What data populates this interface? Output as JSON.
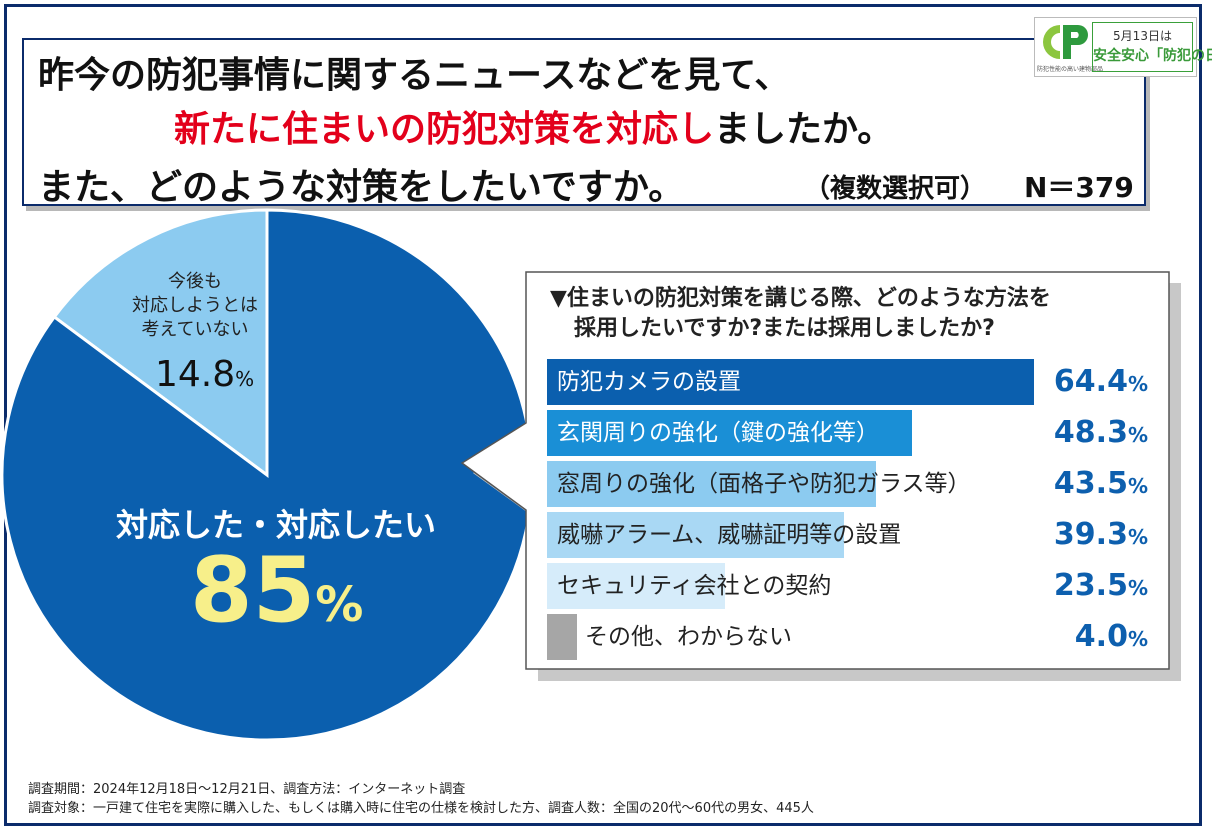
{
  "title": {
    "line1": "昨今の防犯事情に関するニュースなどを見て、",
    "line2_red": "新たに住まいの防犯対策を対応し",
    "line2_black": "ましたか。",
    "line3": "また、どのような対策をしたいですか。",
    "multi_select": "（複数選択可）",
    "sample": "N＝379"
  },
  "logo": {
    "line1": "5月13日は",
    "line2": "安全安心「防犯の日」",
    "sub": "防犯性能の高い建物部品"
  },
  "colors": {
    "pie_main": "#0b5fae",
    "pie_minor": "#8ccbf0",
    "frame": "#0b2b6b",
    "highlight_red": "#e3001b",
    "value_blue": "#0d5fae",
    "pct_yellow": "#f7ef8a"
  },
  "chart_data": [
    {
      "type": "pie",
      "slices": [
        {
          "label": "対応した・対応したい",
          "value": 85,
          "unit": "%",
          "color": "#0b5fae"
        },
        {
          "label": "今後も対応しようとは考えていない",
          "value": 14.8,
          "unit": "%",
          "color": "#8ccbf0"
        }
      ],
      "labels": {
        "minor_lines": [
          "今後も",
          "対応しようとは",
          "考えていない"
        ],
        "minor_value": "14.8",
        "major": "対応した・対応したい",
        "major_value": "85",
        "unit": "%"
      }
    },
    {
      "type": "bar",
      "title_lines": [
        "▼住まいの防犯対策を講じる際、どのような方法を",
        "採用したいですか?または採用しましたか?"
      ],
      "unit": "%",
      "xlim": [
        0,
        100
      ],
      "bars": [
        {
          "label": "防犯カメラの設置",
          "value": 64.4,
          "value_text": "64.4",
          "color": "#0b5fae",
          "text_color": "#ffffff"
        },
        {
          "label": "玄関周りの強化（鍵の強化等）",
          "value": 48.3,
          "value_text": "48.3",
          "color": "#1a8fd6",
          "text_color": "#ffffff"
        },
        {
          "label": "窓周りの強化（面格子や防犯ガラス等）",
          "value": 43.5,
          "value_text": "43.5",
          "color": "#8ccbf0",
          "text_color": "#222222"
        },
        {
          "label": "威嚇アラーム、威嚇証明等の設置",
          "value": 39.3,
          "value_text": "39.3",
          "color": "#a9d8f4",
          "text_color": "#222222"
        },
        {
          "label": "セキュリティ会社との契約",
          "value": 23.5,
          "value_text": "23.5",
          "color": "#d6ecfa",
          "text_color": "#222222"
        },
        {
          "label": "その他、わからない",
          "value": 4.0,
          "value_text": "4.0",
          "color": "#a6a6a6",
          "text_color": "#222222"
        }
      ]
    }
  ],
  "footer": {
    "line1": "調査期間：2024年12月18日～12月21日、調査方法：インターネット調査",
    "line2": "調査対象：一戸建て住宅を実際に購入した、もしくは購入時に住宅の仕様を検討した方、調査人数：全国の20代～60代の男女、445人"
  }
}
